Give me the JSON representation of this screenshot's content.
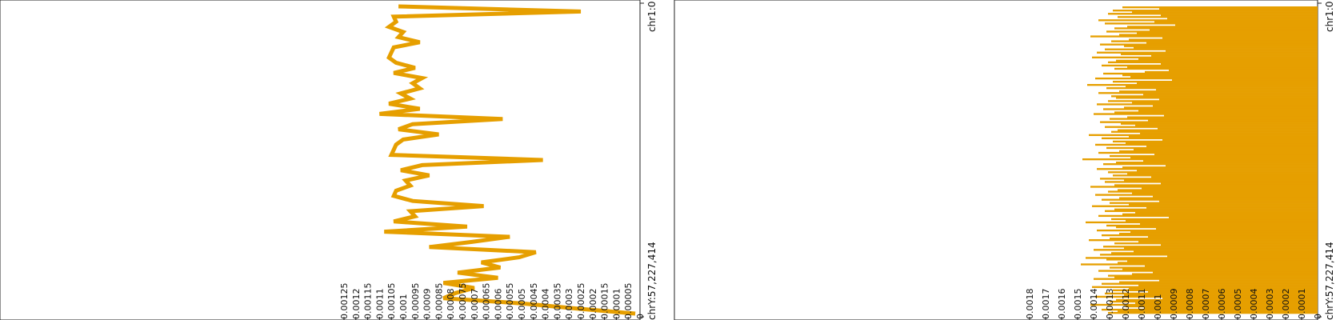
{
  "chart_data": [
    {
      "type": "line",
      "title": "",
      "xlabel": "",
      "ylabel": "",
      "color": "#e69f00",
      "genome_start_label": "chr1:0",
      "genome_end_label": "chrY:57,227,414",
      "ylim": [
        0,
        0.00125
      ],
      "y_ticks": [
        {
          "value": 0.00125,
          "label": "0.00125"
        },
        {
          "value": 0.0012,
          "label": "0.0012"
        },
        {
          "value": 0.00115,
          "label": "0.00115"
        },
        {
          "value": 0.0011,
          "label": "0.0011"
        },
        {
          "value": 0.00105,
          "label": "0.00105"
        },
        {
          "value": 0.001,
          "label": "0.001"
        },
        {
          "value": 0.00095,
          "label": "0.00095"
        },
        {
          "value": 0.0009,
          "label": "0.0009"
        },
        {
          "value": 0.00085,
          "label": "0.00085"
        },
        {
          "value": 0.0008,
          "label": "0.0008"
        },
        {
          "value": 0.00075,
          "label": "0.00075"
        },
        {
          "value": 0.0007,
          "label": "0.0007"
        },
        {
          "value": 0.00065,
          "label": "0.00065"
        },
        {
          "value": 0.0006,
          "label": "0.0006"
        },
        {
          "value": 0.00055,
          "label": "0.00055"
        },
        {
          "value": 0.0005,
          "label": "0.0005"
        },
        {
          "value": 0.00045,
          "label": "0.00045"
        },
        {
          "value": 0.0004,
          "label": "0.0004"
        },
        {
          "value": 0.00035,
          "label": "0.00035"
        },
        {
          "value": 0.0003,
          "label": "0.0003"
        },
        {
          "value": 0.00025,
          "label": "0.00025"
        },
        {
          "value": 0.0002,
          "label": "0.0002"
        },
        {
          "value": 0.00015,
          "label": "0.00015"
        },
        {
          "value": 0.0001,
          "label": "0.0001"
        },
        {
          "value": 5e-05,
          "label": "0.00005"
        },
        {
          "value": 0,
          "label": "0"
        }
      ],
      "y_values": [
        0.00102,
        0.00025,
        0.00104,
        0.00103,
        0.00106,
        0.001,
        0.00102,
        0.00093,
        0.00104,
        0.00105,
        0.00106,
        0.00103,
        0.00095,
        0.00104,
        0.00092,
        0.00096,
        0.00093,
        0.00101,
        0.00097,
        0.00106,
        0.00093,
        0.0011,
        0.00058,
        0.00096,
        0.00102,
        0.00085,
        0.001,
        0.00103,
        0.00104,
        0.00105,
        0.00041,
        0.00092,
        0.00101,
        0.00089,
        0.00099,
        0.00097,
        0.00103,
        0.00104,
        0.00096,
        0.00066,
        0.00097,
        0.00095,
        0.00104,
        0.00073,
        0.00108,
        0.00055,
        0.00071,
        0.00089,
        0.00044,
        0.00051,
        0.00067,
        0.00059,
        0.00077,
        0.0006,
        0.00083,
        0.0007,
        0.00078,
        0.00083,
        0.0005,
        0.00027,
        2e-05
      ]
    },
    {
      "type": "bar",
      "title": "",
      "xlabel": "",
      "ylabel": "",
      "color": "#e69f00",
      "genome_start_label": "chr1:0",
      "genome_end_label": "chrY:57,227,414",
      "ylim": [
        0,
        0.0018
      ],
      "y_ticks": [
        {
          "value": 0.0018,
          "label": "0.0018"
        },
        {
          "value": 0.0017,
          "label": "0.0017"
        },
        {
          "value": 0.0016,
          "label": "0.0016"
        },
        {
          "value": 0.0015,
          "label": "0.0015"
        },
        {
          "value": 0.0014,
          "label": "0.0014"
        },
        {
          "value": 0.0013,
          "label": "0.0013"
        },
        {
          "value": 0.0012,
          "label": "0.0012"
        },
        {
          "value": 0.0011,
          "label": "0.0011"
        },
        {
          "value": 0.001,
          "label": "0.001"
        },
        {
          "value": 0.0009,
          "label": "0.0009"
        },
        {
          "value": 0.0008,
          "label": "0.0008"
        },
        {
          "value": 0.0007,
          "label": "0.0007"
        },
        {
          "value": 0.0006,
          "label": "0.0006"
        },
        {
          "value": 0.0005,
          "label": "0.0005"
        },
        {
          "value": 0.0004,
          "label": "0.0004"
        },
        {
          "value": 0.0003,
          "label": "0.0003"
        },
        {
          "value": 0.0002,
          "label": "0.0002"
        },
        {
          "value": 0.0001,
          "label": "0.0001"
        },
        {
          "value": 0,
          "label": "0"
        }
      ],
      "values": [
        0.00122,
        0.00099,
        0.00128,
        0.00116,
        0.00131,
        0.00098,
        0.00125,
        0.00094,
        0.00137,
        0.00102,
        0.00133,
        0.00089,
        0.00119,
        0.00127,
        0.00105,
        0.00132,
        0.00113,
        0.00124,
        0.00142,
        0.00097,
        0.00118,
        0.00129,
        0.00107,
        0.00136,
        0.00121,
        0.00115,
        0.00133,
        0.00095,
        0.00138,
        0.00123,
        0.00104,
        0.00141,
        0.00112,
        0.00126,
        0.00131,
        0.00098,
        0.00135,
        0.00119,
        0.00127,
        0.00093,
        0.00108,
        0.00134,
        0.00122,
        0.00117,
        0.00139,
        0.00091,
        0.00128,
        0.00113,
        0.00144,
        0.0012,
        0.00132,
        0.00101,
        0.00124,
        0.00137,
        0.00109,
        0.00129,
        0.00126,
        0.00099,
        0.00131,
        0.00116,
        0.00138,
        0.00103,
        0.00121,
        0.00134,
        0.00112,
        0.00127,
        0.0014,
        0.00096,
        0.00119,
        0.0013,
        0.00106,
        0.00136,
        0.00123,
        0.00114,
        0.00133,
        0.001,
        0.00125,
        0.00129,
        0.00111,
        0.00143,
        0.00118,
        0.00135,
        0.00097,
        0.00128,
        0.0012,
        0.00139,
        0.00107,
        0.00132,
        0.00115,
        0.00124,
        0.00137,
        0.00102,
        0.0013,
        0.00117,
        0.00147,
        0.00109,
        0.00126,
        0.00134,
        0.00095,
        0.00122,
        0.00138,
        0.00113,
        0.00131,
        0.00119,
        0.00128,
        0.00104,
        0.00136,
        0.00121,
        0.00133,
        0.00098,
        0.00127,
        0.00142,
        0.0011,
        0.00125,
        0.00131,
        0.00116,
        0.00139,
        0.00103,
        0.00124,
        0.00135,
        0.00099,
        0.0013,
        0.00118,
        0.00141,
        0.00107,
        0.00127,
        0.00133,
        0.00114,
        0.00122,
        0.00137,
        0.00093,
        0.00129,
        0.0012,
        0.00145,
        0.00111,
        0.00132,
        0.00126,
        0.00101,
        0.00138,
        0.00117,
        0.00124,
        0.00135,
        0.00106,
        0.0013,
        0.00143,
        0.00112,
        0.00127,
        0.00098,
        0.00134,
        0.00121,
        0.0014,
        0.00115,
        0.00129,
        0.00136,
        0.00094,
        0.00145,
        0.00132,
        0.00119,
        0.00125,
        0.00148,
        0.00108,
        0.0013,
        0.00122,
        0.00137,
        0.00103,
        0.00116,
        0.00131,
        0.00127,
        0.0014,
        0.00099,
        0.00124,
        0.00135,
        0.00112,
        0.00141,
        0.00118,
        0.00128,
        0.00106,
        0.00133,
        0.00121,
        0.00139,
        0.00097,
        0.00126,
        0.0013,
        0.00114,
        0.00142,
        0.0012,
        0.00108,
        0.00135,
        0.00125,
        0.00131
      ]
    }
  ]
}
